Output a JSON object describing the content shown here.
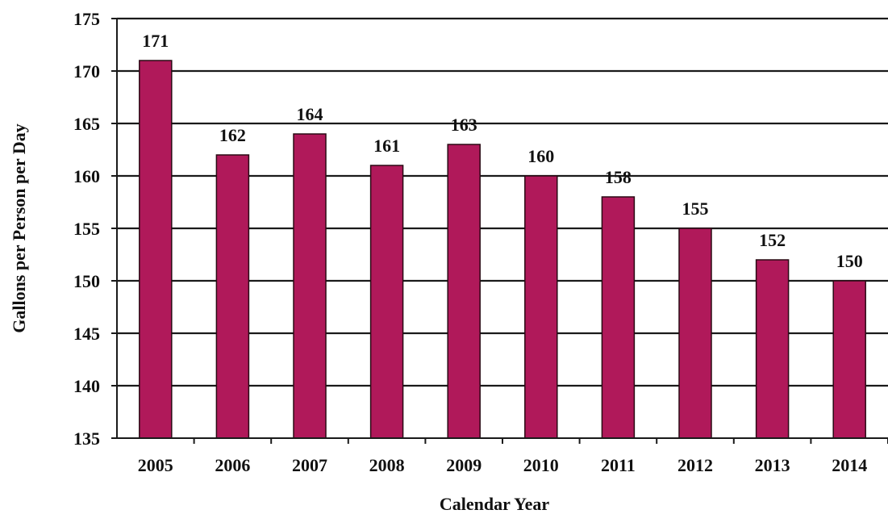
{
  "chart_data": {
    "type": "bar",
    "categories": [
      "2005",
      "2006",
      "2007",
      "2008",
      "2009",
      "2010",
      "2011",
      "2012",
      "2013",
      "2014"
    ],
    "values": [
      171,
      162,
      164,
      161,
      163,
      160,
      158,
      155,
      152,
      150
    ],
    "data_labels": [
      "171",
      "162",
      "164",
      "161",
      "163",
      "160",
      "158",
      "155",
      "152",
      "150"
    ],
    "xlabel": "Calendar Year",
    "ylabel": "Gallons per Person per Day",
    "ylim": [
      135,
      175
    ],
    "yticks": [
      "135",
      "140",
      "145",
      "150",
      "155",
      "160",
      "165",
      "170",
      "175"
    ],
    "grid": "horizontal",
    "legend": "none",
    "colors": {
      "bar": "#b0195a",
      "bar_edge": "#2a0a14",
      "grid": "#1a1a1a",
      "axis": "#1a1a1a"
    }
  }
}
